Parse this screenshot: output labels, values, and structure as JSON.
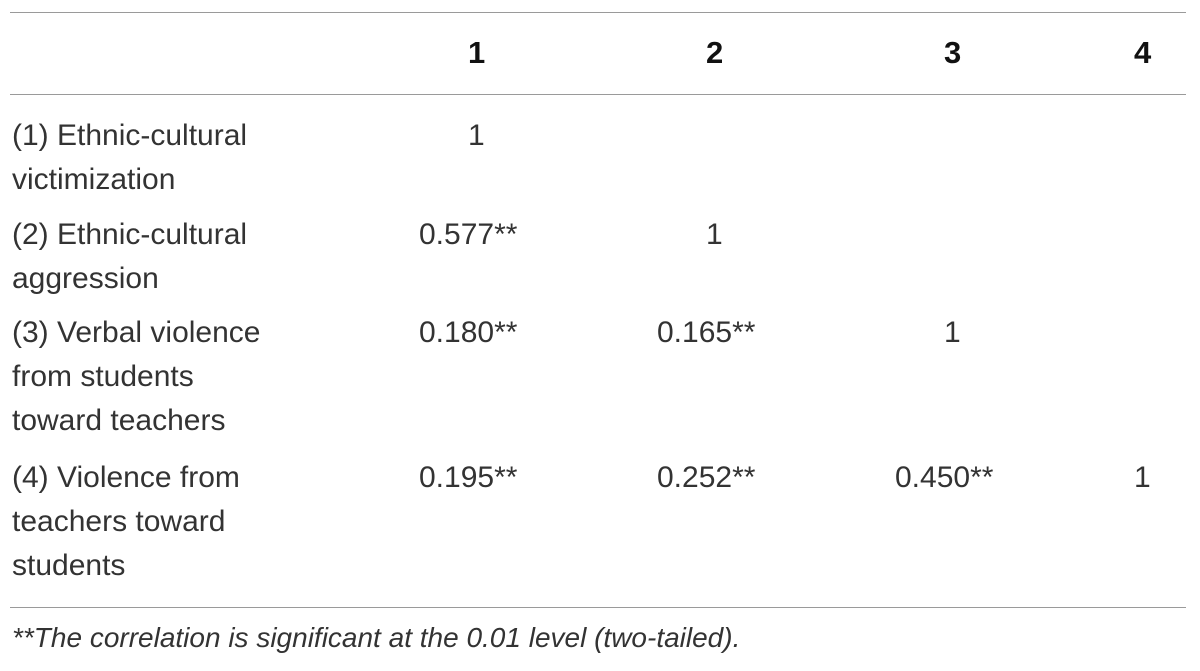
{
  "table": {
    "columns": [
      "1",
      "2",
      "3",
      "4"
    ],
    "rows": [
      {
        "label": "(1) Ethnic-cultural victimization",
        "label_lines": [
          "(1) Ethnic-cultural",
          "victimization"
        ],
        "values": [
          "1",
          "",
          "",
          ""
        ]
      },
      {
        "label": "(2) Ethnic-cultural aggression",
        "label_lines": [
          "(2) Ethnic-cultural",
          "aggression"
        ],
        "values": [
          "0.577**",
          "1",
          "",
          ""
        ]
      },
      {
        "label": "(3) Verbal violence from students toward teachers",
        "label_lines": [
          "(3) Verbal violence",
          "from students",
          "toward teachers"
        ],
        "values": [
          "0.180**",
          "0.165**",
          "1",
          ""
        ]
      },
      {
        "label": "(4) Violence from teachers toward students",
        "label_lines": [
          "(4) Violence from",
          "teachers toward",
          "students"
        ],
        "values": [
          "0.195**",
          "0.252**",
          "0.450**",
          "1"
        ]
      }
    ],
    "footnote": "**The correlation is significant at the 0.01 level (two-tailed)."
  }
}
